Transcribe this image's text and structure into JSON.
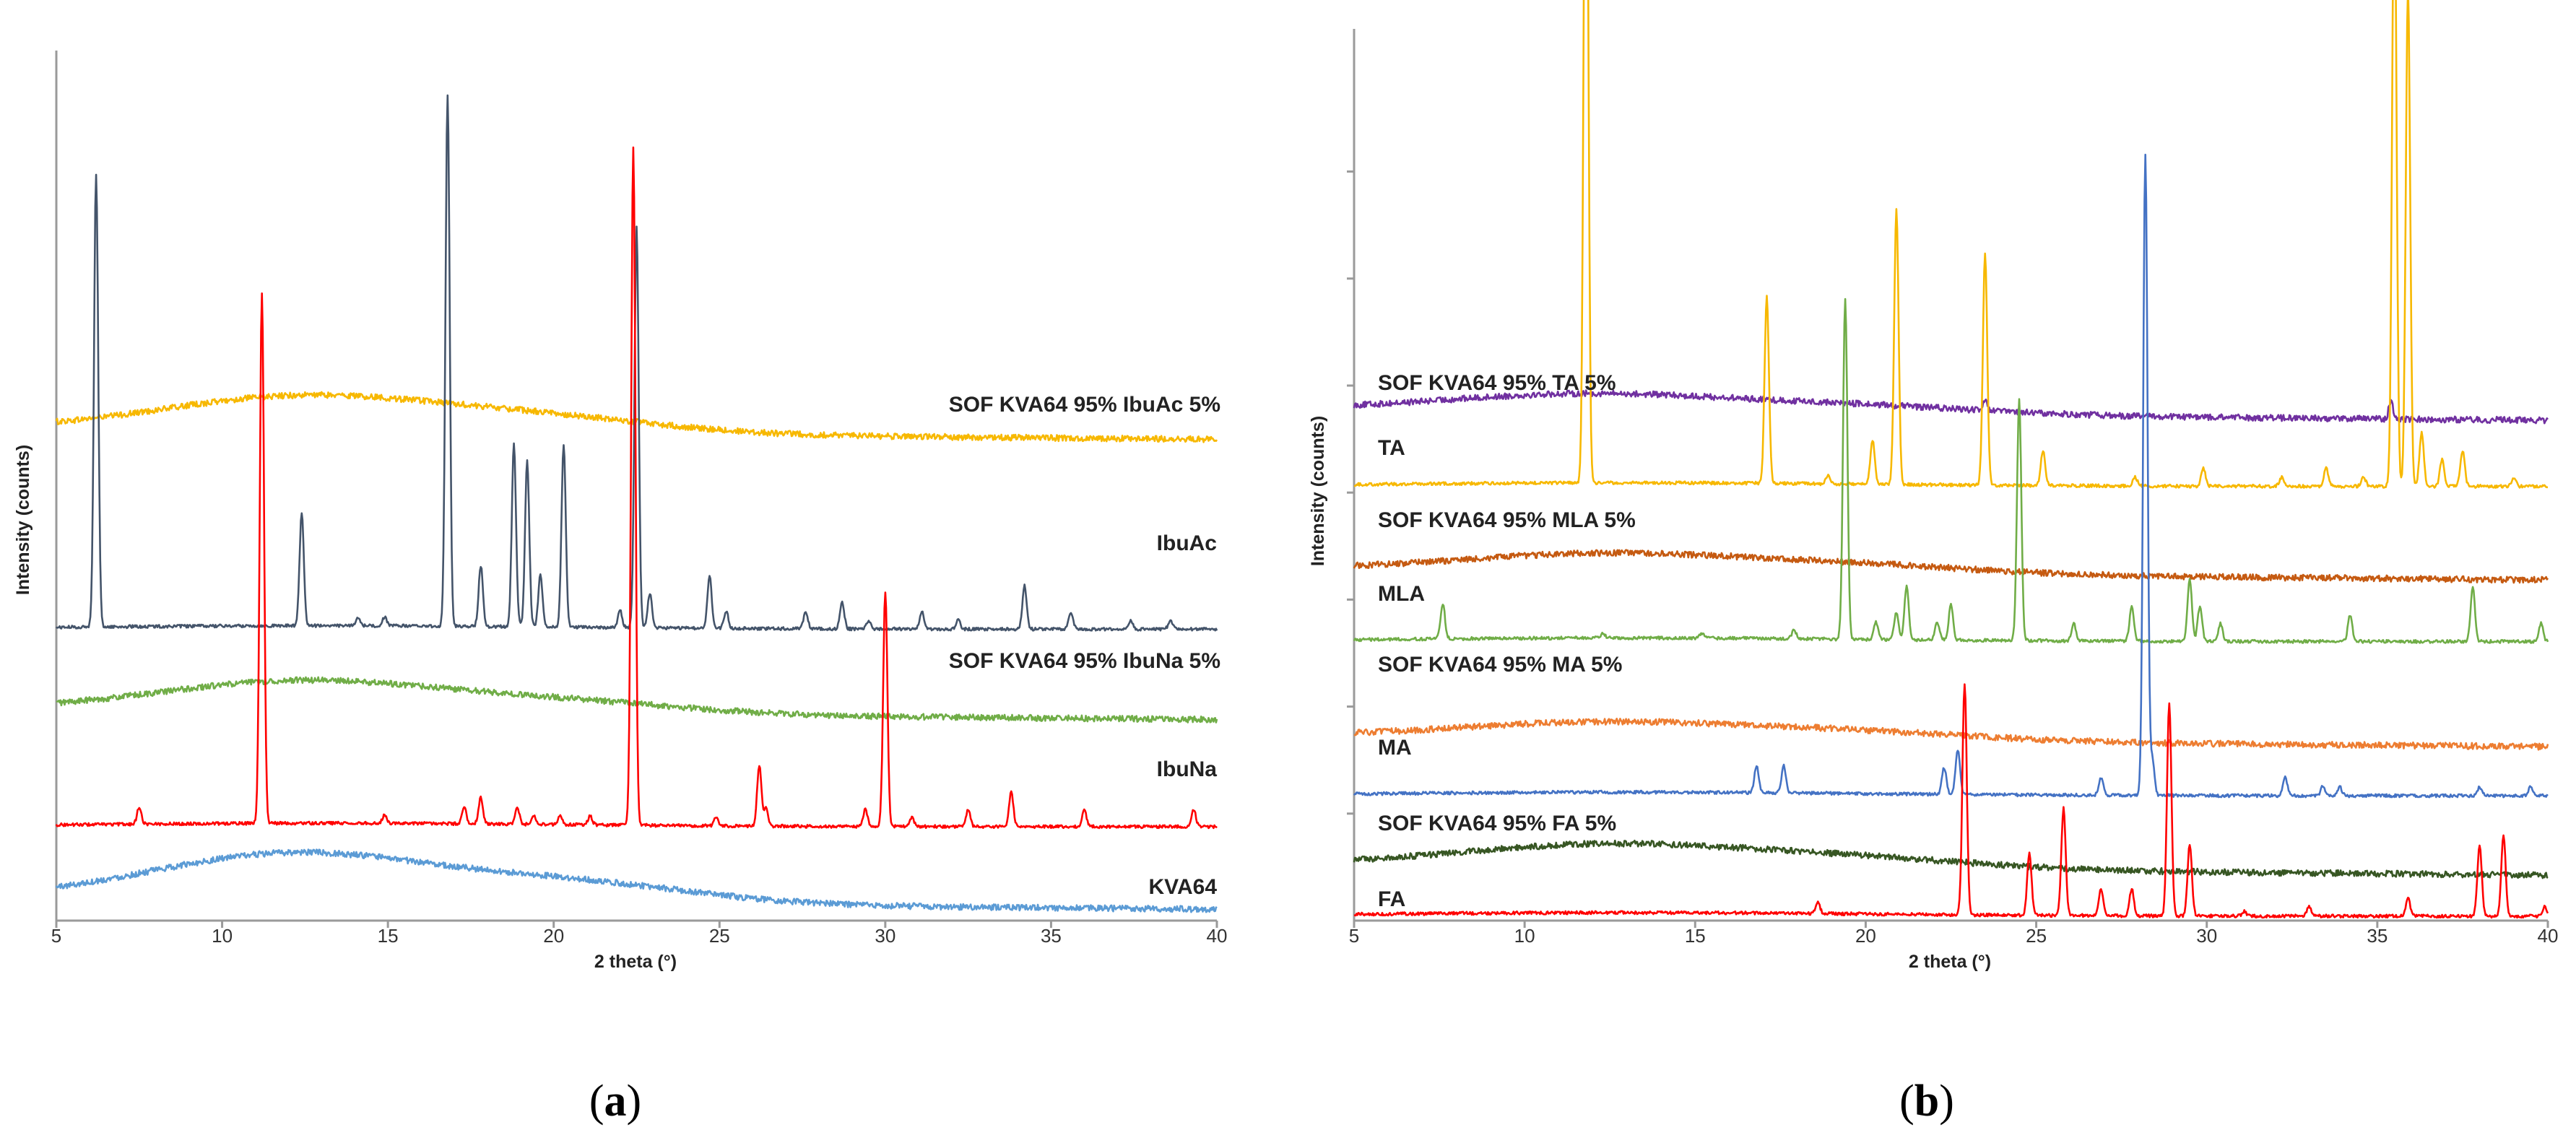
{
  "chart_data": [
    {
      "type": "line",
      "panel": "a",
      "caption": {
        "open": "(",
        "letter": "a",
        "close": ")"
      },
      "xlabel": "2 theta (°)",
      "ylabel": "Intensity (counts)",
      "xlim": [
        5,
        40
      ],
      "xticks": [
        5,
        10,
        15,
        20,
        25,
        30,
        35,
        40
      ],
      "yticks": [],
      "series": [
        {
          "name": "SOF KVA64 95% IbuAc 5%",
          "color": "#f7b800",
          "kind": "amorphous",
          "baseline": 0.565,
          "hump_center": 12.5,
          "hump_width": 6,
          "hump_height": 0.04,
          "hump2_center": 20,
          "hump2_height": 0.015,
          "peaks": []
        },
        {
          "name": "IbuAc",
          "color": "#44546a",
          "kind": "crystalline",
          "baseline": 0.335,
          "peaks": [
            [
              6.2,
              0.52
            ],
            [
              12.4,
              0.13
            ],
            [
              14.1,
              0.01
            ],
            [
              14.9,
              0.01
            ],
            [
              16.8,
              0.61
            ],
            [
              17.8,
              0.07
            ],
            [
              18.8,
              0.21
            ],
            [
              19.2,
              0.19
            ],
            [
              19.6,
              0.06
            ],
            [
              20.3,
              0.21
            ],
            [
              22.0,
              0.02
            ],
            [
              22.5,
              0.46
            ],
            [
              22.9,
              0.04
            ],
            [
              24.7,
              0.06
            ],
            [
              25.2,
              0.02
            ],
            [
              27.6,
              0.02
            ],
            [
              28.7,
              0.03
            ],
            [
              29.5,
              0.01
            ],
            [
              31.1,
              0.02
            ],
            [
              32.2,
              0.01
            ],
            [
              34.2,
              0.05
            ],
            [
              35.6,
              0.02
            ],
            [
              37.4,
              0.01
            ],
            [
              38.6,
              0.01
            ]
          ]
        },
        {
          "name": "SOF KVA64 95% IbuNa 5%",
          "color": "#70ad47",
          "kind": "amorphous",
          "baseline": 0.243,
          "hump_center": 12.5,
          "hump_width": 6,
          "hump_height": 0.035,
          "hump2_center": 20.5,
          "hump2_height": 0.012,
          "peaks": []
        },
        {
          "name": "IbuNa",
          "color": "#ff0000",
          "kind": "crystalline",
          "baseline": 0.108,
          "peaks": [
            [
              7.5,
              0.02
            ],
            [
              11.2,
              0.61
            ],
            [
              14.9,
              0.01
            ],
            [
              17.3,
              0.02
            ],
            [
              17.8,
              0.03
            ],
            [
              18.9,
              0.02
            ],
            [
              19.4,
              0.01
            ],
            [
              20.2,
              0.01
            ],
            [
              21.1,
              0.01
            ],
            [
              22.4,
              0.78
            ],
            [
              24.9,
              0.01
            ],
            [
              26.2,
              0.07
            ],
            [
              26.4,
              0.02
            ],
            [
              29.4,
              0.02
            ],
            [
              30.0,
              0.27
            ],
            [
              30.8,
              0.01
            ],
            [
              32.5,
              0.02
            ],
            [
              33.8,
              0.04
            ],
            [
              36.0,
              0.02
            ],
            [
              39.3,
              0.02
            ]
          ]
        },
        {
          "name": "KVA64",
          "color": "#5b9bd5",
          "kind": "amorphous",
          "baseline": 0.025,
          "hump_center": 12.3,
          "hump_width": 6.2,
          "hump_height": 0.055,
          "hump2_center": 21,
          "hump2_height": 0.02,
          "peaks": []
        }
      ]
    },
    {
      "type": "line",
      "panel": "b",
      "caption": {
        "open": "(",
        "letter": "b",
        "close": ")"
      },
      "xlabel": "2 theta (°)",
      "ylabel": "Intensity (counts)",
      "xlim": [
        5,
        40
      ],
      "xticks": [
        5,
        10,
        15,
        20,
        25,
        30,
        35,
        40
      ],
      "yticks": [
        0.12,
        0.24,
        0.36,
        0.48,
        0.6,
        0.72,
        0.84
      ],
      "series": [
        {
          "name": "SOF KVA64 95% TA 5%",
          "color": "#7030a0",
          "kind": "amorphous",
          "baseline": 0.573,
          "hump_center": 12,
          "hump_width": 6,
          "hump_height": 0.02,
          "hump2_center": 20,
          "hump2_height": 0.008,
          "peaks": [
            [
              23.5,
              0.01
            ],
            [
              35.4,
              0.02
            ]
          ]
        },
        {
          "name": "TA",
          "color": "#f7b800",
          "kind": "crystalline",
          "baseline": 0.487,
          "peaks": [
            [
              11.8,
              0.94
            ],
            [
              17.1,
              0.21
            ],
            [
              18.9,
              0.01
            ],
            [
              20.2,
              0.05
            ],
            [
              20.9,
              0.31
            ],
            [
              23.5,
              0.26
            ],
            [
              25.2,
              0.04
            ],
            [
              27.9,
              0.01
            ],
            [
              29.9,
              0.02
            ],
            [
              32.2,
              0.01
            ],
            [
              33.5,
              0.02
            ],
            [
              34.6,
              0.01
            ],
            [
              35.5,
              0.71
            ],
            [
              35.9,
              0.56
            ],
            [
              36.3,
              0.06
            ],
            [
              36.9,
              0.03
            ],
            [
              37.5,
              0.04
            ],
            [
              39.0,
              0.01
            ]
          ]
        },
        {
          "name": "SOF KVA64 95% MLA 5%",
          "color": "#c55a11",
          "kind": "amorphous",
          "baseline": 0.394,
          "hump_center": 12.5,
          "hump_width": 6,
          "hump_height": 0.02,
          "hump2_center": 20,
          "hump2_height": 0.008,
          "peaks": []
        },
        {
          "name": "MLA",
          "color": "#70ad47",
          "kind": "crystalline",
          "baseline": 0.313,
          "peaks": [
            [
              7.6,
              0.04
            ],
            [
              12.3,
              0.005
            ],
            [
              15.2,
              0.005
            ],
            [
              17.9,
              0.01
            ],
            [
              19.4,
              0.38
            ],
            [
              20.3,
              0.02
            ],
            [
              20.9,
              0.03
            ],
            [
              21.2,
              0.06
            ],
            [
              22.1,
              0.02
            ],
            [
              22.5,
              0.04
            ],
            [
              24.5,
              0.27
            ],
            [
              26.1,
              0.02
            ],
            [
              27.8,
              0.04
            ],
            [
              29.5,
              0.07
            ],
            [
              29.8,
              0.04
            ],
            [
              30.4,
              0.02
            ],
            [
              34.2,
              0.03
            ],
            [
              37.8,
              0.06
            ],
            [
              39.8,
              0.02
            ]
          ]
        },
        {
          "name": "SOF KVA64 95% MA 5%",
          "color": "#ed7d31",
          "kind": "amorphous",
          "baseline": 0.207,
          "hump_center": 12.5,
          "hump_width": 6,
          "hump_height": 0.018,
          "hump2_center": 20,
          "hump2_height": 0.008,
          "peaks": []
        },
        {
          "name": "MA",
          "color": "#4472c4",
          "kind": "crystalline",
          "baseline": 0.14,
          "peaks": [
            [
              16.8,
              0.03
            ],
            [
              17.6,
              0.03
            ],
            [
              22.3,
              0.03
            ],
            [
              22.7,
              0.05
            ],
            [
              26.9,
              0.02
            ],
            [
              28.2,
              0.72
            ],
            [
              28.4,
              0.04
            ],
            [
              32.3,
              0.02
            ],
            [
              33.4,
              0.01
            ],
            [
              33.9,
              0.01
            ],
            [
              38.0,
              0.01
            ],
            [
              39.5,
              0.01
            ]
          ]
        },
        {
          "name": "SOF KVA64 95% FA 5%",
          "color": "#375623",
          "kind": "amorphous",
          "baseline": 0.063,
          "hump_center": 12.5,
          "hump_width": 6,
          "hump_height": 0.025,
          "hump2_center": 20,
          "hump2_height": 0.01,
          "peaks": []
        },
        {
          "name": "FA",
          "color": "#ff0000",
          "kind": "crystalline",
          "baseline": 0.005,
          "peaks": [
            [
              18.6,
              0.012
            ],
            [
              22.9,
              0.26
            ],
            [
              24.8,
              0.07
            ],
            [
              25.8,
              0.12
            ],
            [
              26.9,
              0.03
            ],
            [
              27.8,
              0.03
            ],
            [
              28.9,
              0.24
            ],
            [
              29.5,
              0.08
            ],
            [
              31.1,
              0.005
            ],
            [
              33.0,
              0.01
            ],
            [
              35.9,
              0.02
            ],
            [
              38.0,
              0.08
            ],
            [
              38.7,
              0.09
            ],
            [
              39.9,
              0.01
            ]
          ]
        }
      ]
    }
  ]
}
